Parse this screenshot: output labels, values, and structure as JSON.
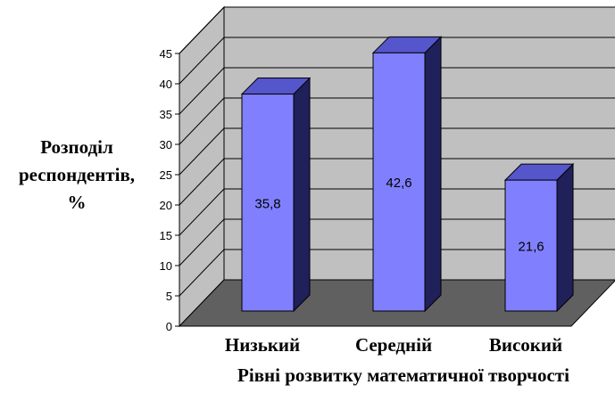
{
  "chart_data": {
    "type": "bar",
    "categories": [
      "Низький",
      "Середній",
      "Високий"
    ],
    "values": [
      35.8,
      42.6,
      21.6
    ],
    "data_labels": [
      "35,8",
      "42,6",
      "21,6"
    ],
    "ylabel_lines": [
      "Розподіл",
      "респондентів,",
      "%"
    ],
    "xlabel": "Рівні розвитку математичної творчості",
    "ylim": [
      0,
      45
    ],
    "yticks": [
      0,
      5,
      10,
      15,
      20,
      25,
      30,
      35,
      40,
      45
    ],
    "grid": true,
    "legend": "none",
    "colors": {
      "bar_front": "#8080ff",
      "bar_top": "#5555cc",
      "bar_side": "#20205a",
      "wall": "#c0c0c0",
      "floor": "#606060",
      "grid": "#000000"
    }
  }
}
